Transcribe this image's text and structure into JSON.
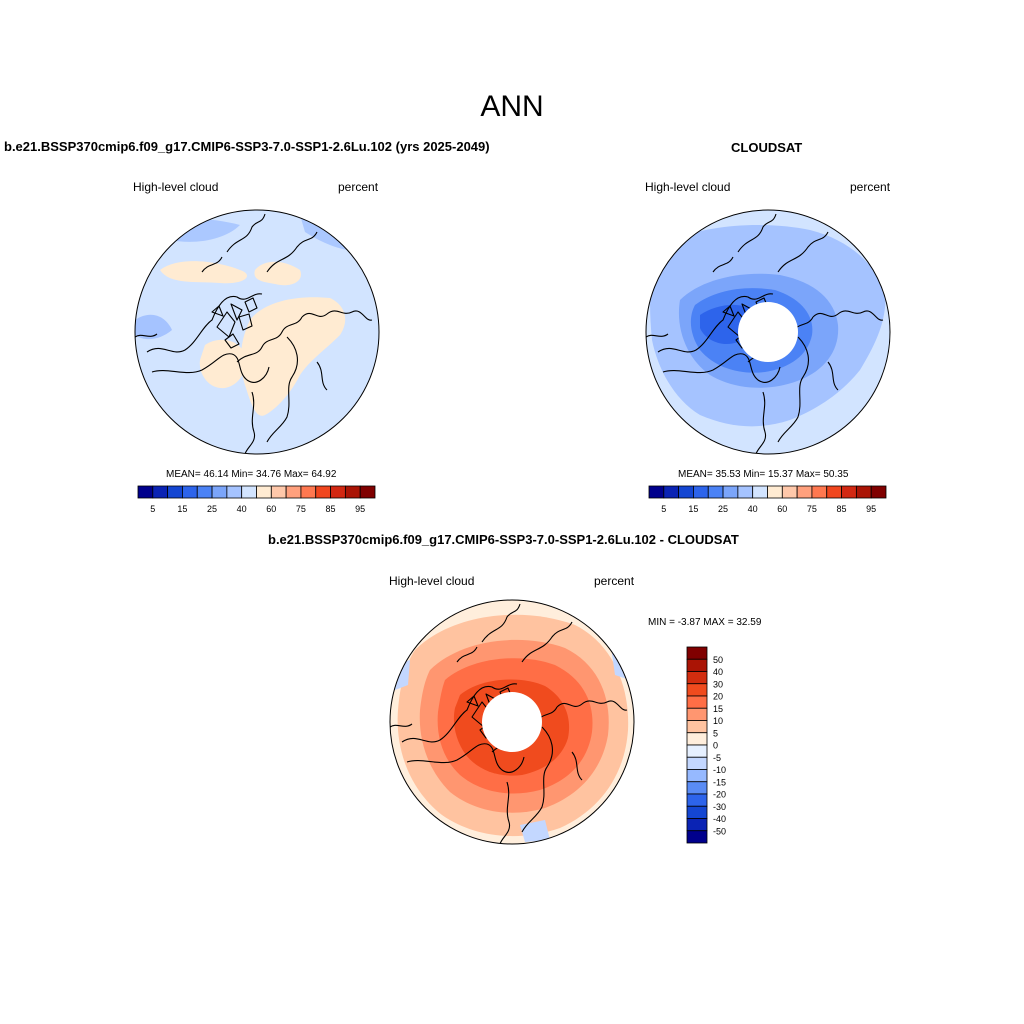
{
  "main_title": "ANN",
  "colors": {
    "abs_scale": [
      "#00008c",
      "#0a23b4",
      "#1446d2",
      "#2d64eb",
      "#4b82f5",
      "#7ba5fa",
      "#a5c3ff",
      "#d2e4ff",
      "#ffebd2",
      "#ffc8aa",
      "#ffa07d",
      "#ff7850",
      "#f0461e",
      "#d22812",
      "#aa1405",
      "#800000"
    ],
    "diff_scale": [
      "#00008c",
      "#0a23b4",
      "#1446d2",
      "#2d64eb",
      "#5a8cf5",
      "#96b9ff",
      "#c3d7ff",
      "#e6f0ff",
      "#ffeedc",
      "#ffc3a0",
      "#ff9670",
      "#ff6e46",
      "#f04b1e",
      "#d22d0f",
      "#aa1405",
      "#800000"
    ],
    "coast": "#000000"
  },
  "panels": {
    "model": {
      "title": "b.e21.BSSP370cmip6.f09_g17.CMIP6-SSP3-7.0-SSP1-2.6Lu.102 (yrs 2025-2049)",
      "left_label": "High-level cloud",
      "right_label": "percent",
      "stats": "MEAN=  46.14  Min=  34.76  Max=  64.92",
      "ticks": [
        "5",
        "15",
        "25",
        "40",
        "60",
        "75",
        "85",
        "95"
      ]
    },
    "obs": {
      "title": "CLOUDSAT",
      "left_label": "High-level cloud",
      "right_label": "percent",
      "stats": "MEAN=  35.53  Min=  15.37  Max=  50.35",
      "ticks": [
        "5",
        "15",
        "25",
        "40",
        "60",
        "75",
        "85",
        "95"
      ]
    },
    "diff": {
      "title": "b.e21.BSSP370cmip6.f09_g17.CMIP6-SSP3-7.0-SSP1-2.6Lu.102 - CLOUDSAT",
      "left_label": "High-level cloud",
      "right_label": "percent",
      "stats": "MIN =  -3.87 MAX =  32.59",
      "ticks": [
        "50",
        "40",
        "30",
        "20",
        "15",
        "10",
        "5",
        "0",
        "-5",
        "-10",
        "-15",
        "-20",
        "-30",
        "-40",
        "-50"
      ]
    }
  }
}
